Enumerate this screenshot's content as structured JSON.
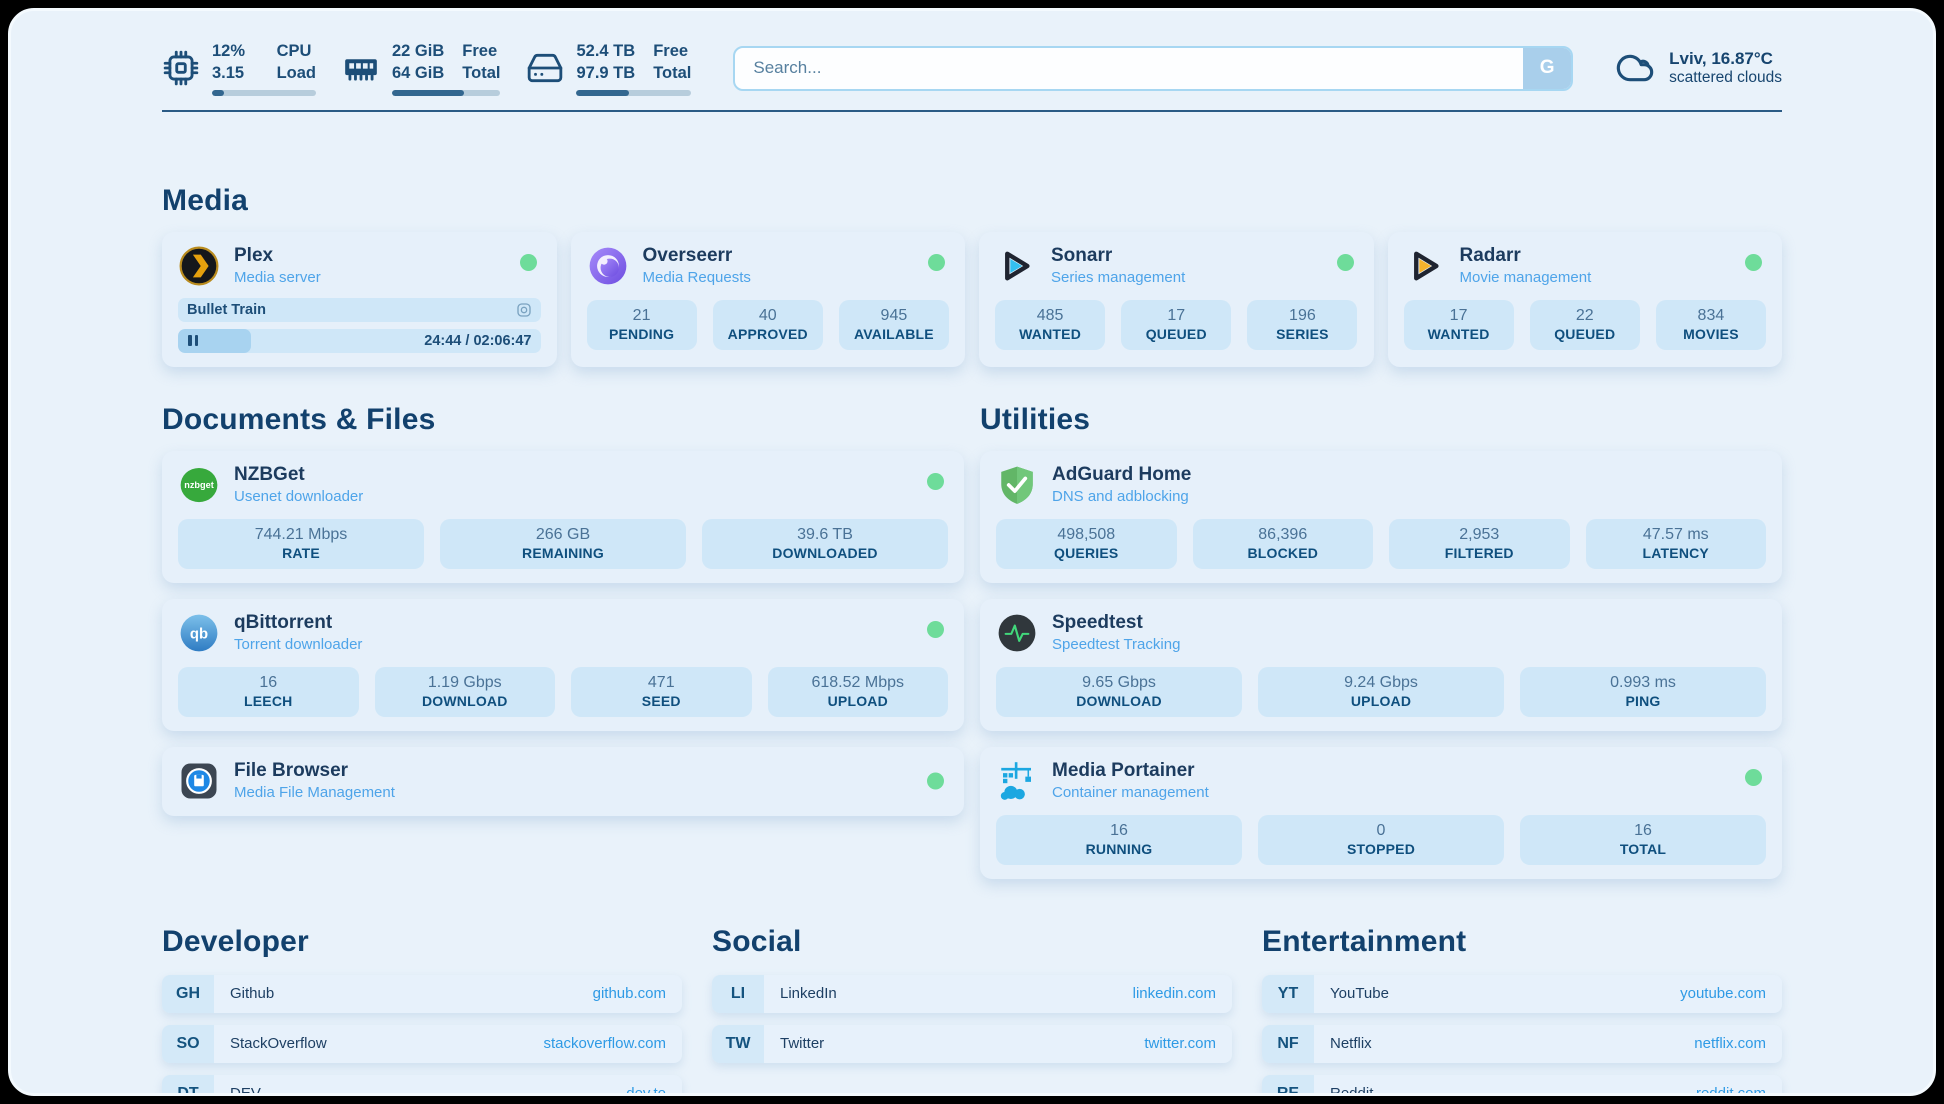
{
  "header": {
    "cpu": {
      "value_top": "12%",
      "value_bottom": "3.15",
      "label_top": "CPU",
      "label_bottom": "Load",
      "percent": 12
    },
    "ram": {
      "value_top": "22 GiB",
      "value_bottom": "64 GiB",
      "label_top": "Free",
      "label_bottom": "Total",
      "percent": 66
    },
    "disk": {
      "value_top": "52.4 TB",
      "value_bottom": "97.9 TB",
      "label_top": "Free",
      "label_bottom": "Total",
      "percent": 46
    },
    "search": {
      "placeholder": "Search...",
      "button_label": "G"
    },
    "weather": {
      "summary": "Lviv, 16.87°C",
      "condition": "scattered clouds"
    }
  },
  "media": {
    "section_title": "Media",
    "plex": {
      "name": "Plex",
      "description": "Media server",
      "status": "online",
      "now_playing": "Bullet Train",
      "time_display": "24:44 / 02:06:47",
      "progress_percent": 20
    },
    "overseerr": {
      "name": "Overseerr",
      "description": "Media Requests",
      "status": "online",
      "stats": [
        {
          "value": "21",
          "label": "PENDING"
        },
        {
          "value": "40",
          "label": "APPROVED"
        },
        {
          "value": "945",
          "label": "AVAILABLE"
        }
      ]
    },
    "sonarr": {
      "name": "Sonarr",
      "description": "Series management",
      "status": "online",
      "stats": [
        {
          "value": "485",
          "label": "WANTED"
        },
        {
          "value": "17",
          "label": "QUEUED"
        },
        {
          "value": "196",
          "label": "SERIES"
        }
      ]
    },
    "radarr": {
      "name": "Radarr",
      "description": "Movie management",
      "status": "online",
      "stats": [
        {
          "value": "17",
          "label": "WANTED"
        },
        {
          "value": "22",
          "label": "QUEUED"
        },
        {
          "value": "834",
          "label": "MOVIES"
        }
      ]
    }
  },
  "documents": {
    "section_title": "Documents & Files",
    "nzbget": {
      "name": "NZBGet",
      "description": "Usenet downloader",
      "status": "online",
      "stats": [
        {
          "value": "744.21 Mbps",
          "label": "RATE"
        },
        {
          "value": "266 GB",
          "label": "REMAINING"
        },
        {
          "value": "39.6 TB",
          "label": "DOWNLOADED"
        }
      ]
    },
    "qbittorrent": {
      "name": "qBittorrent",
      "description": "Torrent downloader",
      "status": "online",
      "stats": [
        {
          "value": "16",
          "label": "LEECH"
        },
        {
          "value": "1.19 Gbps",
          "label": "DOWNLOAD"
        },
        {
          "value": "471",
          "label": "SEED"
        },
        {
          "value": "618.52 Mbps",
          "label": "UPLOAD"
        }
      ]
    },
    "filebrowser": {
      "name": "File Browser",
      "description": "Media File Management",
      "status": "online"
    }
  },
  "utilities": {
    "section_title": "Utilities",
    "adguard": {
      "name": "AdGuard Home",
      "description": "DNS and adblocking",
      "stats": [
        {
          "value": "498,508",
          "label": "QUERIES"
        },
        {
          "value": "86,396",
          "label": "BLOCKED"
        },
        {
          "value": "2,953",
          "label": "FILTERED"
        },
        {
          "value": "47.57 ms",
          "label": "LATENCY"
        }
      ]
    },
    "speedtest": {
      "name": "Speedtest",
      "description": "Speedtest Tracking",
      "stats": [
        {
          "value": "9.65 Gbps",
          "label": "DOWNLOAD"
        },
        {
          "value": "9.24 Gbps",
          "label": "UPLOAD"
        },
        {
          "value": "0.993 ms",
          "label": "PING"
        }
      ]
    },
    "portainer": {
      "name": "Media Portainer",
      "description": "Container management",
      "status": "online",
      "stats": [
        {
          "value": "16",
          "label": "RUNNING"
        },
        {
          "value": "0",
          "label": "STOPPED"
        },
        {
          "value": "16",
          "label": "TOTAL"
        }
      ]
    }
  },
  "bookmarks": {
    "developer": {
      "section_title": "Developer",
      "items": [
        {
          "abbr": "GH",
          "name": "Github",
          "url": "github.com"
        },
        {
          "abbr": "SO",
          "name": "StackOverflow",
          "url": "stackoverflow.com"
        },
        {
          "abbr": "DT",
          "name": "DEV",
          "url": "dev.to"
        }
      ]
    },
    "social": {
      "section_title": "Social",
      "items": [
        {
          "abbr": "LI",
          "name": "LinkedIn",
          "url": "linkedin.com"
        },
        {
          "abbr": "TW",
          "name": "Twitter",
          "url": "twitter.com"
        }
      ]
    },
    "entertainment": {
      "section_title": "Entertainment",
      "items": [
        {
          "abbr": "YT",
          "name": "YouTube",
          "url": "youtube.com"
        },
        {
          "abbr": "NF",
          "name": "Netflix",
          "url": "netflix.com"
        },
        {
          "abbr": "RE",
          "name": "Reddit",
          "url": "reddit.com"
        }
      ]
    }
  },
  "colors": {
    "page_bg": "#e9f2fa",
    "card_bg": "#e6f0fa",
    "stat_box_bg": "#cfe7f8",
    "navy": "#12416d",
    "subtitle_blue": "#4ea4e9",
    "url_blue": "#2e9ae5",
    "status_online": "#6edc9a",
    "progress_fill": "#33678f"
  }
}
